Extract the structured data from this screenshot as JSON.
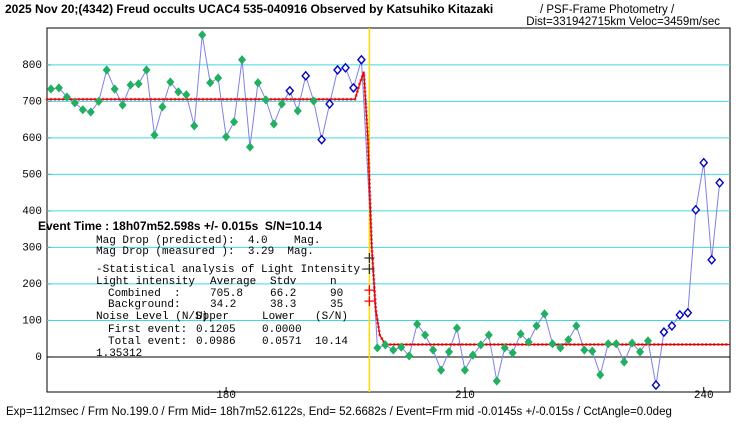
{
  "chart_data": {
    "type": "line",
    "title": "2025 Nov 20;(4342) Freud occults UCAC4 535-040916 Observed by Katsuhiko Kitazaki",
    "subtitle": "/ PSF-Frame Photometry /",
    "subtitle2": "Dist=331942715km Veloc=3459m/sec",
    "footer": "Exp=112msec / Frm No.199.0 / Frm Mid= 18h7m52.6122s, End= 52.6682s / Event=Frm mid -0.0145s +/-0.015s / CctAngle=0.0deg",
    "event_time": "Event Time : 18h07m52.598s +/- 0.015s  S/N=10.14",
    "notes": [
      "Mag Drop (predicted):  4.0    Mag.",
      "Mag Drop (measured ):  3.29  Mag.",
      "-Statistical analysis of Light Intensity-"
    ],
    "stats_table": {
      "header": [
        "Light intensity",
        "Average",
        "Stdv",
        "n"
      ],
      "rows": [
        [
          "Combined  :",
          "705.8",
          "66.2",
          "90"
        ],
        [
          "Background:",
          "34.2",
          "38.3",
          "35"
        ]
      ]
    },
    "noise_table": {
      "header": [
        "Noise Level (N/S)",
        "Upper",
        "Lower",
        "(S/N)"
      ],
      "rows": [
        [
          "First event:",
          "0.1205",
          "0.0000"
        ],
        [
          "Total event:",
          "0.0986",
          "0.0571",
          "10.14"
        ]
      ]
    },
    "extra_note": "1.35312",
    "x": [
      158,
      159,
      160,
      161,
      162,
      163,
      164,
      165,
      166,
      167,
      168,
      169,
      170,
      171,
      172,
      173,
      174,
      175,
      176,
      177,
      178,
      179,
      180,
      181,
      182,
      183,
      184,
      185,
      186,
      187,
      188,
      189,
      190,
      191,
      192,
      193,
      194,
      195,
      196,
      197,
      199,
      200,
      201,
      202,
      203,
      204,
      205,
      206,
      207,
      208,
      209,
      210,
      211,
      212,
      213,
      214,
      215,
      216,
      217,
      218,
      219,
      220,
      221,
      222,
      223,
      224,
      225,
      226,
      227,
      228,
      229,
      230,
      231,
      232,
      233,
      234,
      235,
      236,
      237,
      238,
      239,
      240,
      241,
      242
    ],
    "series": [
      {
        "color": "#8080e8",
        "values": [
          734,
          737,
          712,
          696,
          677,
          671,
          700,
          786,
          734,
          690,
          745,
          748,
          786,
          608,
          685,
          753,
          726,
          718,
          633,
          882,
          751,
          764,
          603,
          644,
          814,
          575,
          751,
          704,
          638,
          693,
          729,
          674,
          770,
          701,
          595,
          693,
          786,
          792,
          737,
          814,
          25,
          33,
          19,
          27,
          3,
          90,
          60,
          19,
          -36,
          14,
          79,
          -36,
          5,
          33,
          60,
          -66,
          25,
          11,
          63,
          41,
          85,
          118,
          36,
          25,
          47,
          85,
          19,
          16,
          -49,
          36,
          36,
          -14,
          38,
          14,
          44,
          -77,
          68,
          85,
          115,
          121,
          403,
          532,
          266,
          477
        ],
        "marker_colors": [
          "#20b060",
          "#20b060",
          "#20b060",
          "#20b060",
          "#20b060",
          "#20b060",
          "#20b060",
          "#20b060",
          "#20b060",
          "#20b060",
          "#20b060",
          "#20b060",
          "#20b060",
          "#20b060",
          "#20b060",
          "#20b060",
          "#20b060",
          "#20b060",
          "#20b060",
          "#20b060",
          "#20b060",
          "#20b060",
          "#20b060",
          "#20b060",
          "#20b060",
          "#20b060",
          "#20b060",
          "#20b060",
          "#20b060",
          "#20b060",
          "#0000c0",
          "#20b060",
          "#0000c0",
          "#20b060",
          "#0000c0",
          "#0000c0",
          "#0000c0",
          "#0000c0",
          "#0000c0",
          "#0000c0",
          "#20b060",
          "#20b060",
          "#20b060",
          "#20b060",
          "#20b060",
          "#20b060",
          "#20b060",
          "#20b060",
          "#20b060",
          "#20b060",
          "#20b060",
          "#20b060",
          "#20b060",
          "#20b060",
          "#20b060",
          "#20b060",
          "#20b060",
          "#20b060",
          "#20b060",
          "#20b060",
          "#20b060",
          "#20b060",
          "#20b060",
          "#20b060",
          "#20b060",
          "#20b060",
          "#20b060",
          "#20b060",
          "#20b060",
          "#20b060",
          "#20b060",
          "#20b060",
          "#20b060",
          "#20b060",
          "#20b060",
          "#0000c0",
          "#0000c0",
          "#0000c0",
          "#0000c0",
          "#0000c0",
          "#0000c0",
          "#0000c0",
          "#0000c0",
          "#0000c0"
        ]
      }
    ],
    "model": {
      "color": "#e00000",
      "x": [
        157.5,
        196.2,
        196.8,
        197.3,
        197.8,
        198.3,
        198.8,
        199.3,
        200,
        243.3
      ],
      "values": [
        705.8,
        705.8,
        750,
        780,
        600,
        300,
        130,
        60,
        34.2,
        34.2
      ]
    },
    "event_points": {
      "color": "#ff0000",
      "x": [
        198,
        198,
        198,
        198
      ],
      "values": [
        271,
        241,
        183,
        153
      ]
    },
    "event_x": 198,
    "event_color": "#ffd800",
    "xlim": [
      157.5,
      243.3
    ],
    "xticks": [
      180,
      210,
      240
    ],
    "ylim": [
      -96,
      901
    ],
    "yticks": [
      0,
      100,
      200,
      300,
      400,
      500,
      600,
      700,
      800
    ],
    "grid": true,
    "grid_color": "#40d8e0"
  }
}
